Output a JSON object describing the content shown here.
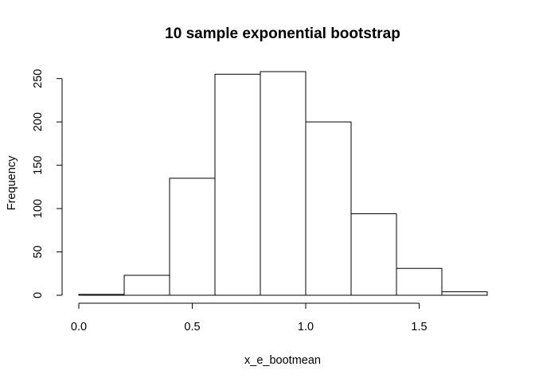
{
  "chart_data": {
    "type": "bar",
    "title": "10 sample exponential bootstrap",
    "xlabel": "x_e_bootmean",
    "ylabel": "Frequency",
    "bin_edges": [
      0.0,
      0.2,
      0.4,
      0.6,
      0.8,
      1.0,
      1.2,
      1.4,
      1.6,
      1.8
    ],
    "values": [
      1,
      23,
      135,
      255,
      258,
      200,
      94,
      31,
      4
    ],
    "xlim": [
      0.0,
      1.8
    ],
    "ylim": [
      0,
      258
    ],
    "x_ticks": [
      0.0,
      0.5,
      1.0,
      1.5
    ],
    "x_tick_labels": [
      "0.0",
      "0.5",
      "1.0",
      "1.5"
    ],
    "y_ticks": [
      0,
      50,
      100,
      150,
      200,
      250
    ],
    "y_tick_labels": [
      "0",
      "50",
      "100",
      "150",
      "200",
      "250"
    ],
    "grid": false,
    "bar_fill": "#ffffff",
    "bar_stroke": "#000000"
  }
}
